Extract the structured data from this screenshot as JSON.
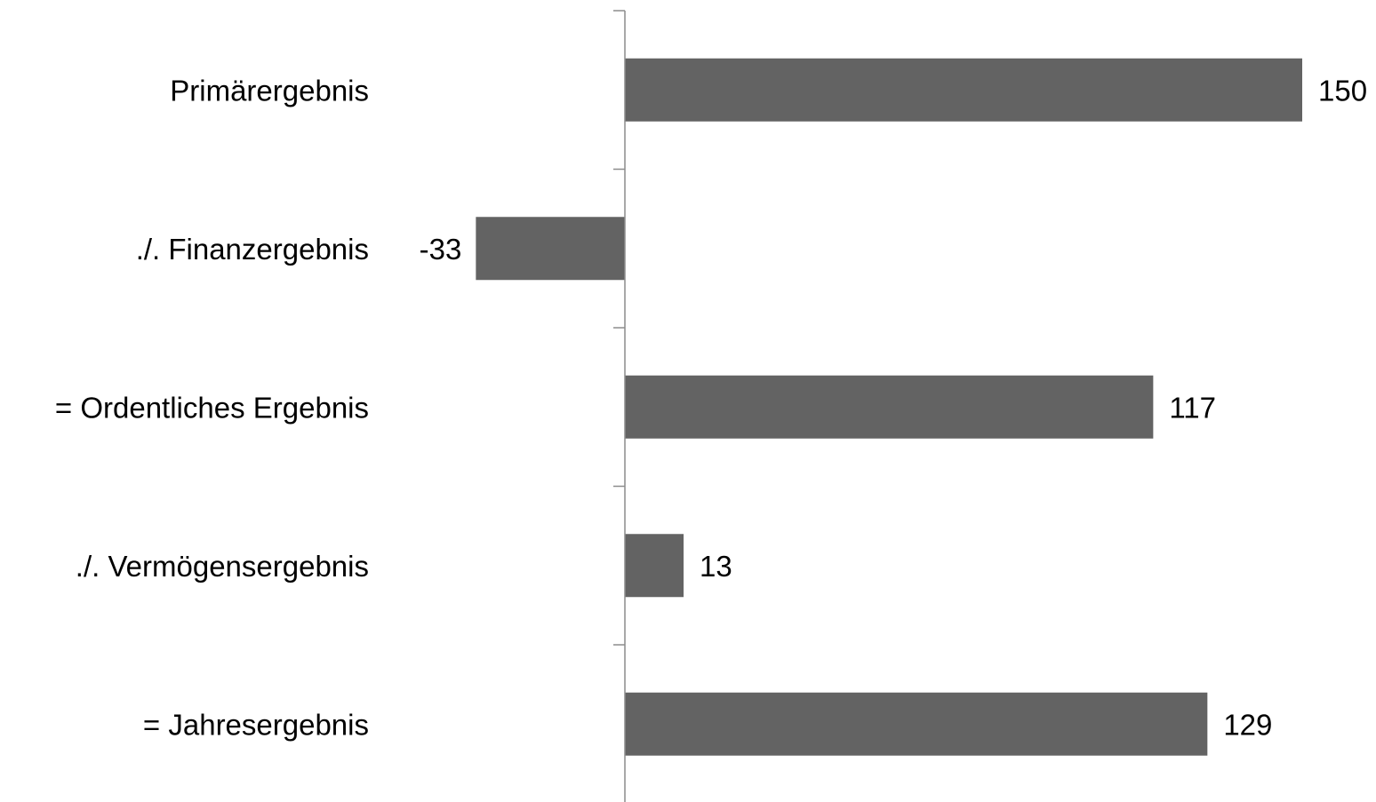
{
  "chart_data": {
    "type": "bar",
    "orientation": "horizontal",
    "categories": [
      "Primärergebnis",
      "./. Finanzergebnis",
      "= Ordentliches Ergebnis",
      "./. Vermögensergebnis",
      "= Jahresergebnis"
    ],
    "values": [
      150,
      -33,
      117,
      13,
      129
    ],
    "data_labels": [
      "150",
      "-33",
      "117",
      "13",
      "129"
    ],
    "title": "",
    "xlabel": "",
    "ylabel": "",
    "grid": false,
    "legend": "none",
    "bar_color": "#636363",
    "axis_color": "#8c8c8c"
  }
}
